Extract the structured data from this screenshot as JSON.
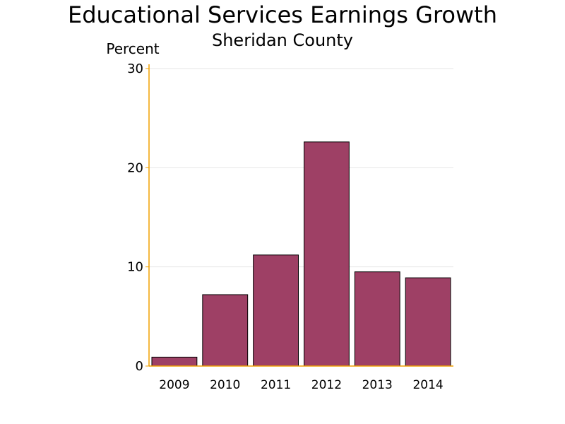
{
  "chart_data": {
    "type": "bar",
    "title": "Educational Services Earnings Growth",
    "subtitle": "Sheridan County",
    "xlabel": "",
    "ylabel": "Percent",
    "categories": [
      "2009",
      "2010",
      "2011",
      "2012",
      "2013",
      "2014"
    ],
    "values": [
      0.9,
      7.2,
      11.2,
      22.6,
      9.5,
      8.9
    ],
    "ylim": [
      0,
      30
    ],
    "yticks": [
      "0",
      "10",
      "20",
      "30"
    ],
    "grid": true,
    "legend": "none",
    "colors": {
      "bar_fill": "#9e4065",
      "bar_stroke": "#000000",
      "axis": "#f0a000",
      "grid": "#e6e6e6"
    }
  }
}
